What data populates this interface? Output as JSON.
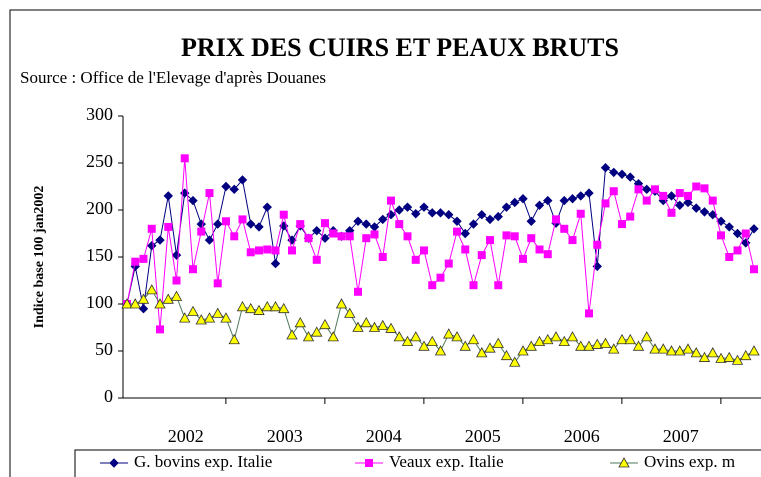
{
  "chart_data": {
    "type": "line",
    "title": "PRIX DES CUIRS ET PEAUX BRUTS",
    "subtitle": "Source : Office de l'Elevage d'après Douanes",
    "y_label": "Indice base 100 jan2002",
    "categories": [
      null,
      null,
      null,
      null,
      null,
      null,
      null,
      "2002",
      null,
      null,
      null,
      null,
      null,
      null,
      null,
      null,
      null,
      null,
      null,
      "2003",
      null,
      null,
      null,
      null,
      null,
      null,
      null,
      null,
      null,
      null,
      null,
      "2004",
      null,
      null,
      null,
      null,
      null,
      null,
      null,
      null,
      null,
      null,
      null,
      "2005",
      null,
      null,
      null,
      null,
      null,
      null,
      null,
      null,
      null,
      null,
      null,
      "2006",
      null,
      null,
      null,
      null,
      null,
      null,
      null,
      null,
      null,
      null,
      null,
      "2007",
      null,
      null,
      null,
      null,
      null,
      null,
      null,
      null,
      null
    ],
    "series": [
      {
        "name": "G. bovins exp. Italie",
        "color": "#000080",
        "marker": "diamond",
        "values": [
          100,
          140,
          95,
          162,
          168,
          215,
          152,
          218,
          210,
          185,
          168,
          185,
          225,
          222,
          232,
          185,
          182,
          203,
          143,
          183,
          168,
          183,
          170,
          178,
          170,
          178,
          172,
          178,
          188,
          185,
          182,
          190,
          195,
          200,
          203,
          196,
          203,
          197,
          197,
          195,
          188,
          175,
          185,
          195,
          190,
          193,
          203,
          208,
          212,
          188,
          205,
          210,
          186,
          210,
          212,
          215,
          218,
          140,
          245,
          240,
          238,
          235,
          228,
          222,
          220,
          210,
          215,
          205,
          208,
          202,
          198,
          195,
          188,
          182,
          175,
          165,
          180
        ]
      },
      {
        "name": "Veaux exp. Italie",
        "color": "#ff00ff",
        "marker": "square",
        "values": [
          100,
          145,
          148,
          180,
          73,
          182,
          125,
          255,
          137,
          177,
          218,
          122,
          188,
          172,
          190,
          155,
          157,
          158,
          157,
          195,
          157,
          185,
          170,
          147,
          186,
          175,
          172,
          172,
          113,
          170,
          174,
          150,
          210,
          185,
          172,
          147,
          157,
          120,
          128,
          143,
          177,
          158,
          120,
          152,
          168,
          120,
          173,
          172,
          148,
          170,
          158,
          153,
          190,
          180,
          168,
          196,
          90,
          163,
          207,
          220,
          185,
          193,
          222,
          210,
          222,
          215,
          197,
          218,
          215,
          225,
          223,
          210,
          173,
          150,
          157,
          175,
          137
        ]
      },
      {
        "name": "Ovins exp. m",
        "color": "#4d7a5a",
        "marker_color": "#ffff00",
        "marker": "triangle",
        "values": [
          100,
          100,
          105,
          115,
          100,
          105,
          108,
          85,
          92,
          83,
          85,
          90,
          85,
          62,
          97,
          95,
          93,
          97,
          97,
          95,
          67,
          80,
          65,
          70,
          78,
          65,
          100,
          90,
          75,
          80,
          75,
          77,
          74,
          65,
          60,
          65,
          55,
          60,
          50,
          68,
          65,
          55,
          62,
          48,
          53,
          58,
          45,
          38,
          50,
          55,
          60,
          62,
          65,
          60,
          65,
          55,
          55,
          57,
          58,
          52,
          62,
          62,
          55,
          65,
          52,
          52,
          50,
          50,
          52,
          48,
          43,
          48,
          42,
          43,
          40,
          45,
          50
        ]
      }
    ],
    "ylim": [
      0,
      300
    ],
    "yticks": [
      0,
      50,
      100,
      150,
      200,
      250,
      300
    ],
    "grid": false
  }
}
